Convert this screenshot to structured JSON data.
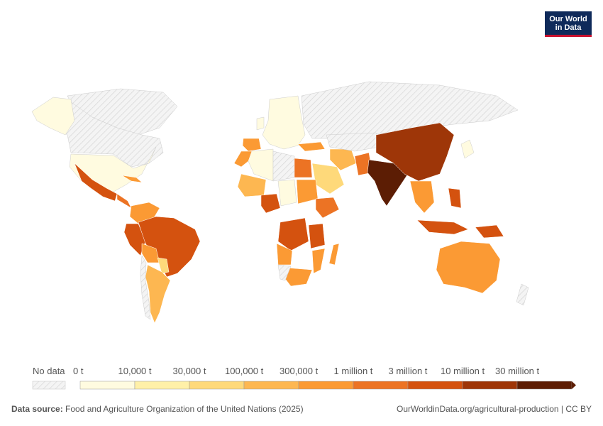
{
  "logo": {
    "line1": "Our World",
    "line2": "in Data"
  },
  "legend": {
    "no_data_label": "No data",
    "bins": [
      {
        "label": "0 t",
        "color": "#fffbe0"
      },
      {
        "label": "10,000 t",
        "color": "#fff0a8"
      },
      {
        "label": "30,000 t",
        "color": "#fed97a"
      },
      {
        "label": "100,000 t",
        "color": "#fdb751"
      },
      {
        "label": "300,000 t",
        "color": "#fb9a34"
      },
      {
        "label": "1 million t",
        "color": "#ec7324"
      },
      {
        "label": "3 million t",
        "color": "#d4520f"
      },
      {
        "label": "10 million t",
        "color": "#9e3608"
      },
      {
        "label": "30 million t",
        "color": "#5c1d04"
      }
    ]
  },
  "footer": {
    "source_prefix": "Data source:",
    "source_text": "Food and Agriculture Organization of the United Nations (2025)",
    "url_text": "OurWorldinData.org/agricultural-production | CC BY"
  },
  "colors": {
    "no_data": "#e2e2e2",
    "border": "#ffffff"
  }
}
